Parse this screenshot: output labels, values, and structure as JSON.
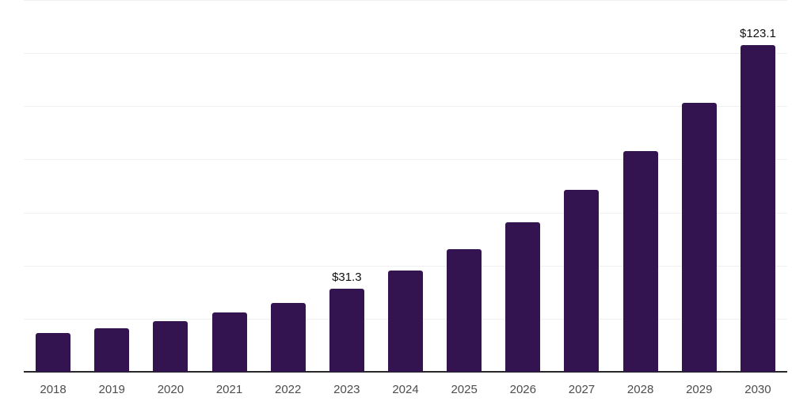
{
  "chart_data": {
    "type": "bar",
    "title": "",
    "xlabel": "",
    "ylabel": "",
    "categories": [
      "2018",
      "2019",
      "2020",
      "2021",
      "2022",
      "2023",
      "2024",
      "2025",
      "2026",
      "2027",
      "2028",
      "2029",
      "2030"
    ],
    "values": [
      14.7,
      16.5,
      19.0,
      22.2,
      25.8,
      31.3,
      38.1,
      46.3,
      56.3,
      68.4,
      83.2,
      101.2,
      123.1
    ],
    "data_labels": [
      "",
      "",
      "",
      "",
      "",
      "$31.3",
      "",
      "",
      "",
      "",
      "",
      "",
      "$123.1"
    ],
    "ylim": [
      0,
      140
    ],
    "gridline_step": 20,
    "grid": true,
    "legend": false,
    "y_tick_labels_visible": false,
    "colors": {
      "bar": "#341450",
      "grid_line": "#f0f0f2",
      "axis_line": "#28282a",
      "tick_label": "#4d4d4d",
      "data_label": "#111111",
      "background": "#ffffff"
    }
  }
}
